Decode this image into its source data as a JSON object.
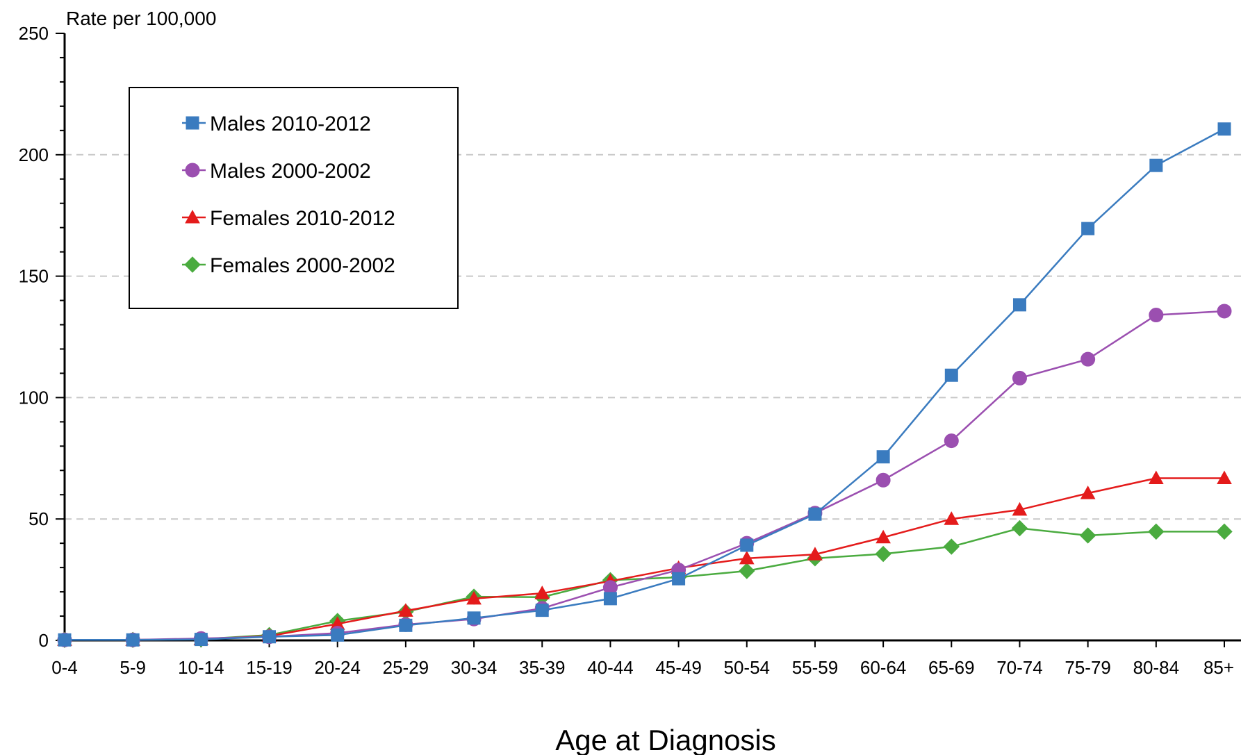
{
  "chart_data": {
    "type": "line",
    "title": "",
    "ylabel": "Rate per 100,000",
    "xlabel": "Age at Diagnosis",
    "categories": [
      "0-4",
      "5-9",
      "10-14",
      "15-19",
      "20-24",
      "25-29",
      "30-34",
      "35-39",
      "40-44",
      "45-49",
      "50-54",
      "55-59",
      "60-64",
      "65-69",
      "70-74",
      "75-79",
      "80-84",
      "85+"
    ],
    "ylim": [
      0,
      250
    ],
    "yticks": [
      0,
      50,
      100,
      150,
      200,
      250
    ],
    "grid": "horizontal-dashed",
    "legend_position": "top-left",
    "series": [
      {
        "name": "Males 2010-2012",
        "color": "#3a7bbf",
        "marker": "square",
        "values": [
          0.2,
          0.2,
          0.4,
          1.5,
          2.2,
          6.2,
          9.2,
          12.4,
          17.2,
          25.4,
          39.2,
          52.0,
          75.6,
          109.2,
          138.2,
          169.6,
          195.6,
          210.6
        ]
      },
      {
        "name": "Males 2000-2002",
        "color": "#9b4fb0",
        "marker": "circle",
        "values": [
          0.2,
          0.2,
          0.8,
          1.5,
          3.0,
          6.5,
          8.8,
          13.2,
          21.8,
          29.0,
          40.0,
          52.4,
          66.0,
          82.2,
          108.0,
          115.8,
          134.0,
          135.6
        ]
      },
      {
        "name": "Females 2010-2012",
        "color": "#e41b1b",
        "marker": "triangle",
        "values": [
          0.2,
          0.2,
          0.5,
          1.8,
          6.8,
          12.2,
          17.2,
          19.4,
          24.4,
          29.8,
          33.8,
          35.4,
          42.4,
          50.0,
          53.8,
          60.6,
          66.8,
          66.8
        ]
      },
      {
        "name": "Females 2000-2002",
        "color": "#4aab3f",
        "marker": "diamond",
        "values": [
          0.2,
          0.2,
          0.5,
          2.2,
          8.0,
          11.8,
          18.0,
          17.8,
          24.8,
          26.0,
          28.6,
          33.8,
          35.6,
          38.6,
          46.2,
          43.2,
          44.8,
          44.8
        ]
      }
    ]
  }
}
